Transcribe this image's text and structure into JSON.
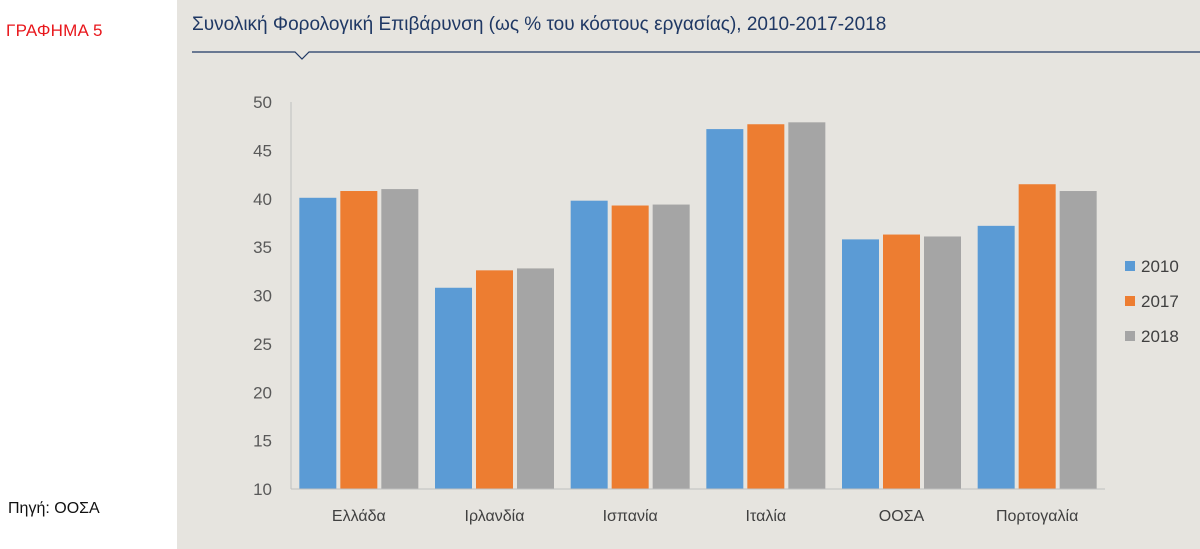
{
  "figure_label": "ΓΡΑΦΗΜΑ 5",
  "source": "Πηγή: ΟΟΣΑ",
  "chart_data": {
    "type": "bar",
    "title": "Συνολική Φορολογική Επιβάρυνση (ως % του κόστους εργασίας), 2010-2017-2018",
    "xlabel": "",
    "ylabel": "",
    "ylim": [
      10,
      50
    ],
    "yticks": [
      "10",
      "15",
      "20",
      "25",
      "30",
      "35",
      "40",
      "45",
      "50"
    ],
    "ytick_values": [
      10,
      15,
      20,
      25,
      30,
      35,
      40,
      45,
      50
    ],
    "categories": [
      "Ελλάδα",
      "Ιρλανδία",
      "Ισπανία",
      "Ιταλία",
      "ΟΟΣΑ",
      "Πορτογαλία"
    ],
    "series": [
      {
        "name": "2010",
        "color": "#5b9bd5",
        "values": [
          40.1,
          30.8,
          39.8,
          47.2,
          35.8,
          37.2
        ]
      },
      {
        "name": "2017",
        "color": "#ed7d31",
        "values": [
          40.8,
          32.6,
          39.3,
          47.7,
          36.3,
          41.5
        ]
      },
      {
        "name": "2018",
        "color": "#a5a5a5",
        "values": [
          41.0,
          32.8,
          39.4,
          47.9,
          36.1,
          40.8
        ]
      }
    ],
    "grid": false,
    "legend_position": "right"
  },
  "colors": {
    "title": "#1f3864",
    "figure_label": "#e8171c",
    "panel_background": "#e6e4df",
    "axis": "#bfbfbf"
  }
}
